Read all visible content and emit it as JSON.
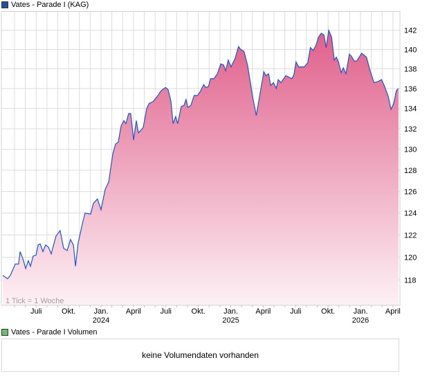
{
  "legend_price": {
    "label": "Vates - Parade I (KAG)",
    "color": "#1f4fa8"
  },
  "legend_volume": {
    "label": "Vates - Parade I Volumen",
    "color": "#6cc070"
  },
  "volume_message": "keine Volumendaten vorhanden",
  "tick_note": "1 Tick = 1 Woche",
  "colors": {
    "line": "#1a56c8",
    "fill_top": "#e05f8a",
    "fill_bottom": "#fdf1f5",
    "grid": "#dcdcdc"
  },
  "chart_data": {
    "type": "area",
    "title": "Vates - Parade I (KAG)",
    "xlabel": "",
    "ylabel": "",
    "yscale": "log",
    "ylim": [
      115.8,
      144.0
    ],
    "xlim": [
      2023.22,
      2026.3
    ],
    "grid": true,
    "y_ticks": [
      118,
      120,
      122,
      124,
      126,
      128,
      130,
      132,
      134,
      136,
      138,
      140,
      142
    ],
    "x_ticks": [
      {
        "t": 2023.5,
        "label": "Juli",
        "year": ""
      },
      {
        "t": 2023.75,
        "label": "Okt.",
        "year": ""
      },
      {
        "t": 2024.0,
        "label": "Jan.",
        "year": "2024"
      },
      {
        "t": 2024.25,
        "label": "April",
        "year": ""
      },
      {
        "t": 2024.5,
        "label": "Juli",
        "year": ""
      },
      {
        "t": 2024.75,
        "label": "Okt.",
        "year": ""
      },
      {
        "t": 2025.0,
        "label": "Jan.",
        "year": "2025"
      },
      {
        "t": 2025.25,
        "label": "April",
        "year": ""
      },
      {
        "t": 2025.5,
        "label": "Juli",
        "year": ""
      },
      {
        "t": 2025.75,
        "label": "Okt.",
        "year": ""
      },
      {
        "t": 2026.0,
        "label": "Jan.",
        "year": "2026"
      },
      {
        "t": 2026.25,
        "label": "April",
        "year": ""
      }
    ],
    "series": [
      {
        "name": "Vates - Parade I (KAG)",
        "points": [
          [
            2023.243,
            118.4
          ],
          [
            2023.28,
            118.1
          ],
          [
            2023.301,
            118.4
          ],
          [
            2023.339,
            119.4
          ],
          [
            2023.365,
            119.4
          ],
          [
            2023.376,
            120.5
          ],
          [
            2023.397,
            119.9
          ],
          [
            2023.419,
            119.0
          ],
          [
            2023.44,
            119.7
          ],
          [
            2023.456,
            119.2
          ],
          [
            2023.477,
            120.1
          ],
          [
            2023.499,
            120.2
          ],
          [
            2023.515,
            121.1
          ],
          [
            2023.531,
            121.2
          ],
          [
            2023.552,
            120.5
          ],
          [
            2023.573,
            121.1
          ],
          [
            2023.595,
            120.9
          ],
          [
            2023.616,
            120.3
          ],
          [
            2023.653,
            121.9
          ],
          [
            2023.685,
            122.4
          ],
          [
            2023.712,
            120.8
          ],
          [
            2023.739,
            120.6
          ],
          [
            2023.765,
            121.6
          ],
          [
            2023.787,
            121.1
          ],
          [
            2023.803,
            119.2
          ],
          [
            2023.824,
            121.3
          ],
          [
            2023.856,
            123.0
          ],
          [
            2023.877,
            124.0
          ],
          [
            2023.92,
            123.9
          ],
          [
            2023.941,
            124.9
          ],
          [
            2023.973,
            125.3
          ],
          [
            2024.0,
            124.3
          ],
          [
            2024.032,
            126.2
          ],
          [
            2024.059,
            126.9
          ],
          [
            2024.091,
            129.6
          ],
          [
            2024.112,
            130.5
          ],
          [
            2024.133,
            130.7
          ],
          [
            2024.155,
            132.3
          ],
          [
            2024.176,
            132.8
          ],
          [
            2024.192,
            132.5
          ],
          [
            2024.213,
            133.5
          ],
          [
            2024.229,
            133.5
          ],
          [
            2024.251,
            130.9
          ],
          [
            2024.272,
            132.8
          ],
          [
            2024.288,
            131.6
          ],
          [
            2024.325,
            132.1
          ],
          [
            2024.352,
            134.0
          ],
          [
            2024.37,
            134.5
          ],
          [
            2024.402,
            134.7
          ],
          [
            2024.433,
            135.2
          ],
          [
            2024.465,
            135.8
          ],
          [
            2024.497,
            136.1
          ],
          [
            2024.517,
            135.9
          ],
          [
            2024.539,
            134.7
          ],
          [
            2024.555,
            132.5
          ],
          [
            2024.575,
            133.2
          ],
          [
            2024.591,
            132.5
          ],
          [
            2024.618,
            134.2
          ],
          [
            2024.639,
            134.3
          ],
          [
            2024.655,
            134.9
          ],
          [
            2024.67,
            134.1
          ],
          [
            2024.692,
            134.3
          ],
          [
            2024.718,
            135.3
          ],
          [
            2024.744,
            135.3
          ],
          [
            2024.765,
            135.7
          ],
          [
            2024.792,
            136.4
          ],
          [
            2024.807,
            136.1
          ],
          [
            2024.828,
            136.2
          ],
          [
            2024.844,
            137.0
          ],
          [
            2024.871,
            137.0
          ],
          [
            2024.897,
            137.5
          ],
          [
            2024.923,
            138.5
          ],
          [
            2024.945,
            138.4
          ],
          [
            2024.96,
            137.8
          ],
          [
            2024.981,
            138.9
          ],
          [
            2025.002,
            138.2
          ],
          [
            2025.034,
            139.1
          ],
          [
            2025.06,
            140.3
          ],
          [
            2025.076,
            140.0
          ],
          [
            2025.102,
            139.8
          ],
          [
            2025.129,
            138.4
          ],
          [
            2025.15,
            136.7
          ],
          [
            2025.171,
            135.0
          ],
          [
            2025.197,
            133.3
          ],
          [
            2025.219,
            135.0
          ],
          [
            2025.255,
            137.7
          ],
          [
            2025.271,
            137.3
          ],
          [
            2025.292,
            137.5
          ],
          [
            2025.308,
            136.3
          ],
          [
            2025.329,
            136.6
          ],
          [
            2025.351,
            136.0
          ],
          [
            2025.366,
            136.9
          ],
          [
            2025.387,
            136.6
          ],
          [
            2025.424,
            137.3
          ],
          [
            2025.455,
            137.1
          ],
          [
            2025.471,
            137.0
          ],
          [
            2025.487,
            137.4
          ],
          [
            2025.503,
            138.7
          ],
          [
            2025.524,
            138.2
          ],
          [
            2025.545,
            138.2
          ],
          [
            2025.566,
            138.2
          ],
          [
            2025.593,
            138.6
          ],
          [
            2025.614,
            140.2
          ],
          [
            2025.635,
            139.9
          ],
          [
            2025.656,
            140.4
          ],
          [
            2025.677,
            141.3
          ],
          [
            2025.698,
            141.7
          ],
          [
            2025.719,
            141.5
          ],
          [
            2025.735,
            140.2
          ],
          [
            2025.755,
            142.0
          ],
          [
            2025.777,
            141.3
          ],
          [
            2025.798,
            138.9
          ],
          [
            2025.814,
            139.2
          ],
          [
            2025.83,
            138.7
          ],
          [
            2025.851,
            137.6
          ],
          [
            2025.867,
            138.1
          ],
          [
            2025.888,
            137.5
          ],
          [
            2025.914,
            139.5
          ],
          [
            2025.93,
            139.3
          ],
          [
            2025.951,
            138.8
          ],
          [
            2025.972,
            138.8
          ],
          [
            2026.009,
            139.6
          ],
          [
            2026.046,
            139.2
          ],
          [
            2026.072,
            137.9
          ],
          [
            2026.104,
            136.6
          ],
          [
            2026.135,
            136.7
          ],
          [
            2026.162,
            136.9
          ],
          [
            2026.183,
            136.3
          ],
          [
            2026.214,
            135.2
          ],
          [
            2026.235,
            133.9
          ],
          [
            2026.256,
            134.5
          ],
          [
            2026.277,
            135.8
          ],
          [
            2026.293,
            136.0
          ]
        ]
      }
    ]
  }
}
